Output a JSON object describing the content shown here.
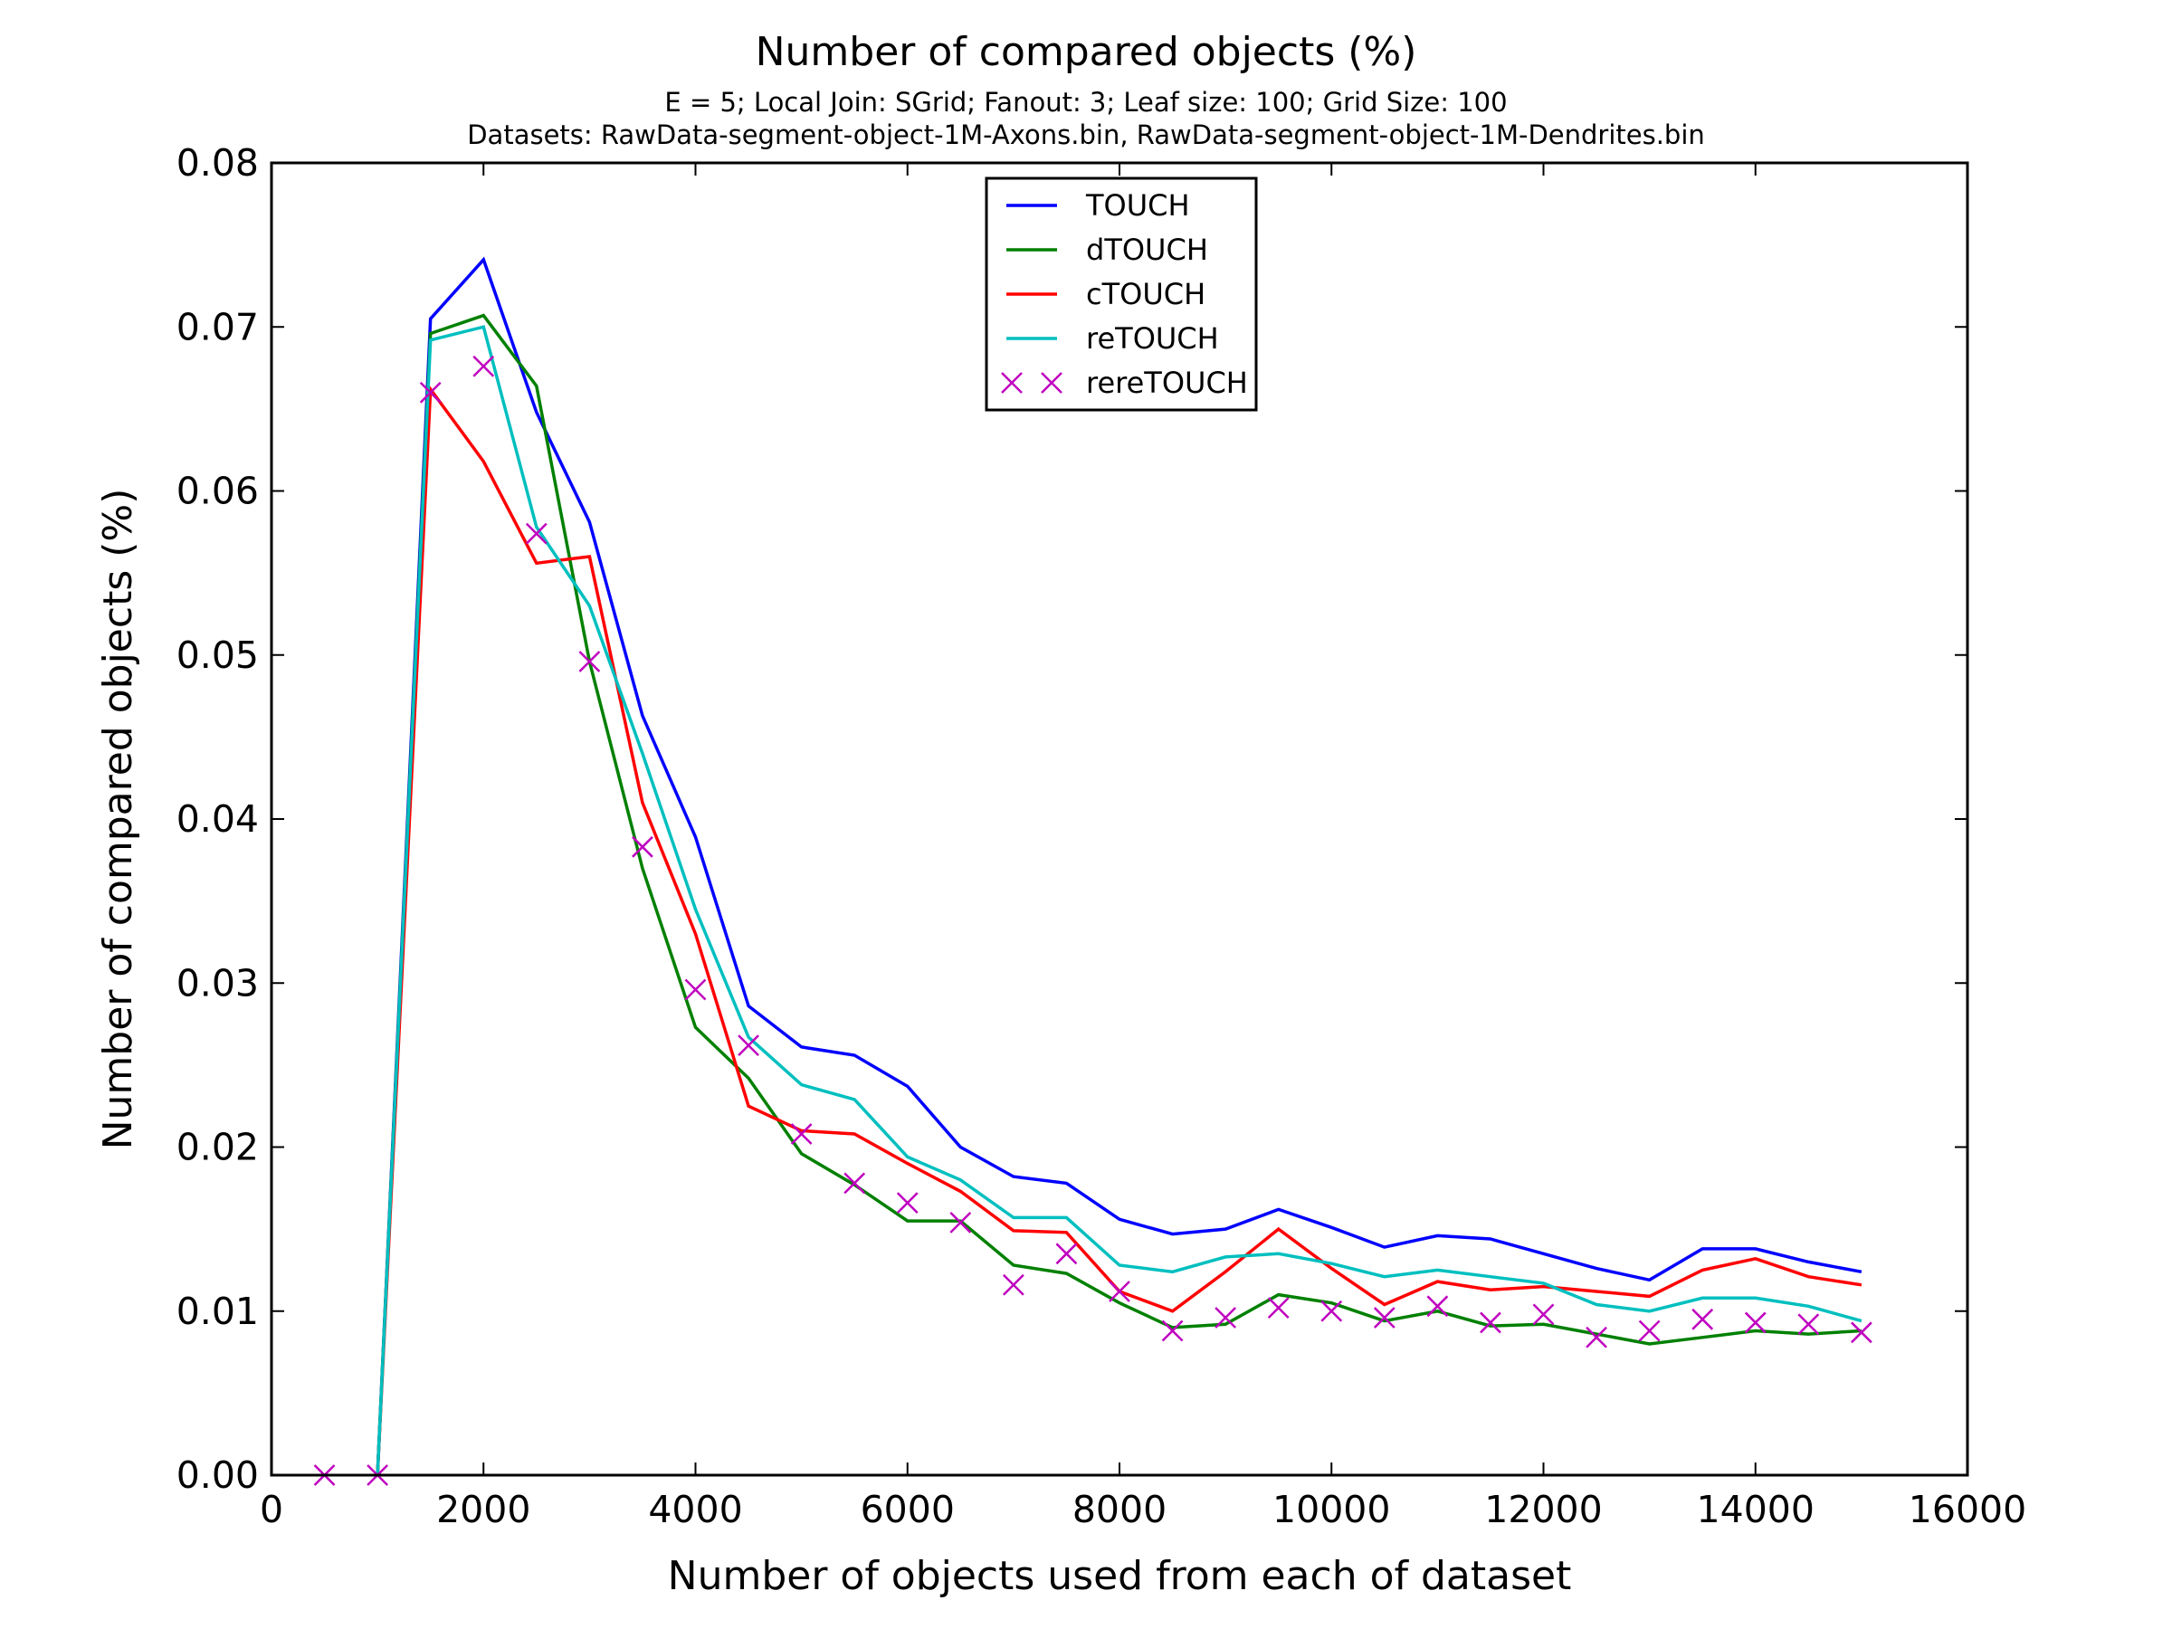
{
  "chart_data": {
    "type": "line",
    "title": "Number of compared objects (%)",
    "subtitle_lines": [
      "E = 5; Local Join: SGrid; Fanout: 3; Leaf size: 100; Grid Size: 100",
      "Datasets: RawData-segment-object-1M-Axons.bin, RawData-segment-object-1M-Dendrites.bin"
    ],
    "xlabel": "Number of objects used from each of dataset",
    "ylabel": "Number of compared objects (%)",
    "xlim": [
      0,
      16000
    ],
    "ylim": [
      0,
      0.08
    ],
    "x_ticks": [
      "0",
      "2000",
      "4000",
      "6000",
      "8000",
      "10000",
      "12000",
      "14000",
      "16000"
    ],
    "y_ticks": [
      "0.00",
      "0.01",
      "0.02",
      "0.03",
      "0.04",
      "0.05",
      "0.06",
      "0.07",
      "0.08"
    ],
    "grid": false,
    "legend_position": "top-center",
    "series": [
      {
        "name": "TOUCH",
        "style": "line",
        "color": "#0000ff",
        "points": [
          [
            1000,
            0.0
          ],
          [
            1500,
            0.0705
          ],
          [
            2000,
            0.0741
          ],
          [
            2500,
            0.0648
          ],
          [
            3000,
            0.0581
          ],
          [
            3500,
            0.0463
          ],
          [
            4000,
            0.0389
          ],
          [
            4500,
            0.0286
          ],
          [
            5000,
            0.0261
          ],
          [
            5500,
            0.0256
          ],
          [
            6000,
            0.0237
          ],
          [
            6500,
            0.02
          ],
          [
            7000,
            0.0182
          ],
          [
            7500,
            0.0178
          ],
          [
            8000,
            0.0156
          ],
          [
            8500,
            0.0147
          ],
          [
            9000,
            0.015
          ],
          [
            9500,
            0.0162
          ],
          [
            10000,
            0.0151
          ],
          [
            10500,
            0.0139
          ],
          [
            11000,
            0.0146
          ],
          [
            11500,
            0.0144
          ],
          [
            12000,
            0.0135
          ],
          [
            12500,
            0.0126
          ],
          [
            13000,
            0.0119
          ],
          [
            13500,
            0.0138
          ],
          [
            14000,
            0.0138
          ],
          [
            14500,
            0.013
          ],
          [
            15000,
            0.0124
          ]
        ]
      },
      {
        "name": "dTOUCH",
        "style": "line",
        "color": "#008000",
        "points": [
          [
            1000,
            0.0
          ],
          [
            1500,
            0.0696
          ],
          [
            2000,
            0.0707
          ],
          [
            2500,
            0.0664
          ],
          [
            3000,
            0.0496
          ],
          [
            3500,
            0.037
          ],
          [
            4000,
            0.0273
          ],
          [
            4500,
            0.0242
          ],
          [
            5000,
            0.0196
          ],
          [
            5500,
            0.0177
          ],
          [
            6000,
            0.0155
          ],
          [
            6500,
            0.0155
          ],
          [
            7000,
            0.0128
          ],
          [
            7500,
            0.0123
          ],
          [
            8000,
            0.0105
          ],
          [
            8500,
            0.009
          ],
          [
            9000,
            0.0092
          ],
          [
            9500,
            0.011
          ],
          [
            10000,
            0.0105
          ],
          [
            10500,
            0.0094
          ],
          [
            11000,
            0.01
          ],
          [
            11500,
            0.0091
          ],
          [
            12000,
            0.0092
          ],
          [
            12500,
            0.0086
          ],
          [
            13000,
            0.008
          ],
          [
            13500,
            0.0084
          ],
          [
            14000,
            0.0088
          ],
          [
            14500,
            0.0086
          ],
          [
            15000,
            0.0088
          ]
        ]
      },
      {
        "name": "cTOUCH",
        "style": "line",
        "color": "#ff0000",
        "points": [
          [
            1000,
            0.0
          ],
          [
            1500,
            0.0662
          ],
          [
            2000,
            0.0618
          ],
          [
            2500,
            0.0556
          ],
          [
            3000,
            0.056
          ],
          [
            3500,
            0.041
          ],
          [
            4000,
            0.033
          ],
          [
            4500,
            0.0225
          ],
          [
            5000,
            0.021
          ],
          [
            5500,
            0.0208
          ],
          [
            6000,
            0.019
          ],
          [
            6500,
            0.0173
          ],
          [
            7000,
            0.0149
          ],
          [
            7500,
            0.0148
          ],
          [
            8000,
            0.0112
          ],
          [
            8500,
            0.01
          ],
          [
            9000,
            0.0124
          ],
          [
            9500,
            0.015
          ],
          [
            10000,
            0.0126
          ],
          [
            10500,
            0.0104
          ],
          [
            11000,
            0.0118
          ],
          [
            11500,
            0.0113
          ],
          [
            12000,
            0.0115
          ],
          [
            12500,
            0.0112
          ],
          [
            13000,
            0.0109
          ],
          [
            13500,
            0.0125
          ],
          [
            14000,
            0.0132
          ],
          [
            14500,
            0.0121
          ],
          [
            15000,
            0.0116
          ]
        ]
      },
      {
        "name": "reTOUCH",
        "style": "line",
        "color": "#00bfbf",
        "points": [
          [
            1000,
            0.0
          ],
          [
            1500,
            0.0692
          ],
          [
            2000,
            0.07
          ],
          [
            2500,
            0.0578
          ],
          [
            3000,
            0.053
          ],
          [
            3500,
            0.044
          ],
          [
            4000,
            0.0345
          ],
          [
            4500,
            0.0267
          ],
          [
            5000,
            0.0238
          ],
          [
            5500,
            0.0229
          ],
          [
            6000,
            0.0194
          ],
          [
            6500,
            0.018
          ],
          [
            7000,
            0.0157
          ],
          [
            7500,
            0.0157
          ],
          [
            8000,
            0.0128
          ],
          [
            8500,
            0.0124
          ],
          [
            9000,
            0.0133
          ],
          [
            9500,
            0.0135
          ],
          [
            10000,
            0.0129
          ],
          [
            10500,
            0.0121
          ],
          [
            11000,
            0.0125
          ],
          [
            11500,
            0.0121
          ],
          [
            12000,
            0.0117
          ],
          [
            12500,
            0.0104
          ],
          [
            13000,
            0.01
          ],
          [
            13500,
            0.0108
          ],
          [
            14000,
            0.0108
          ],
          [
            14500,
            0.0103
          ],
          [
            15000,
            0.0094
          ]
        ]
      },
      {
        "name": "rereTOUCH",
        "style": "marker-x",
        "color": "#bf00bf",
        "points": [
          [
            500,
            0.0
          ],
          [
            1000,
            0.0
          ],
          [
            1500,
            0.066
          ],
          [
            2000,
            0.0676
          ],
          [
            2500,
            0.0574
          ],
          [
            3000,
            0.0496
          ],
          [
            3500,
            0.0383
          ],
          [
            4000,
            0.0296
          ],
          [
            4500,
            0.0262
          ],
          [
            5000,
            0.0208
          ],
          [
            5500,
            0.0178
          ],
          [
            6000,
            0.0166
          ],
          [
            6500,
            0.0154
          ],
          [
            7000,
            0.0116
          ],
          [
            7500,
            0.0135
          ],
          [
            8000,
            0.0112
          ],
          [
            8500,
            0.0088
          ],
          [
            9000,
            0.0096
          ],
          [
            9500,
            0.0102
          ],
          [
            10000,
            0.01
          ],
          [
            10500,
            0.0096
          ],
          [
            11000,
            0.0103
          ],
          [
            11500,
            0.0093
          ],
          [
            12000,
            0.0098
          ],
          [
            12500,
            0.0084
          ],
          [
            13000,
            0.0088
          ],
          [
            13500,
            0.0095
          ],
          [
            14000,
            0.0093
          ],
          [
            14500,
            0.0092
          ],
          [
            15000,
            0.0087
          ]
        ]
      }
    ]
  }
}
